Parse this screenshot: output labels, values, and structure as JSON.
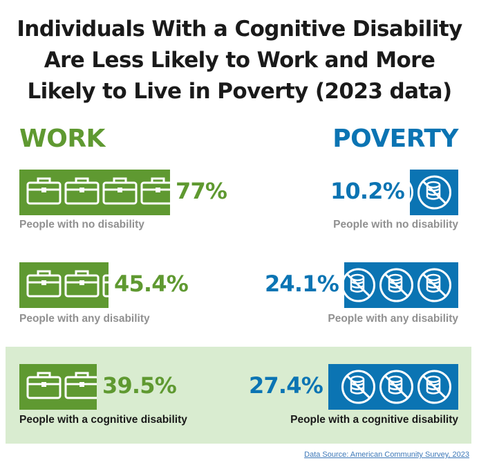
{
  "title_lines": [
    "Individuals With a Cognitive Disability",
    "Are Less Likely to Work and More",
    "Likely to Live in Poverty (2023 data)"
  ],
  "colors": {
    "work": "#5f9931",
    "poverty": "#0b74b3",
    "highlight": "#d9ecd0",
    "muted_label": "#909090"
  },
  "chart_data": [
    {
      "type": "bar",
      "title": "WORK",
      "icon": "briefcase-icon",
      "categories": [
        "People with no disability",
        "People with any disability",
        "People with a cognitive disability"
      ],
      "values": [
        77,
        45.4,
        39.5
      ],
      "value_labels": [
        "77%",
        "45.4%",
        "39.5%"
      ],
      "highlighted_category": "People with a cognitive disability"
    },
    {
      "type": "bar",
      "title": "POVERTY",
      "icon": "no-money-icon",
      "categories": [
        "People with no disability",
        "People with any disability",
        "People with a cognitive disability"
      ],
      "values": [
        10.2,
        24.1,
        27.4
      ],
      "value_labels": [
        "10.2%",
        "24.1%",
        "27.4%"
      ],
      "highlighted_category": "People with a cognitive disability"
    }
  ],
  "source": "Data Source: American Community Survey, 2023"
}
